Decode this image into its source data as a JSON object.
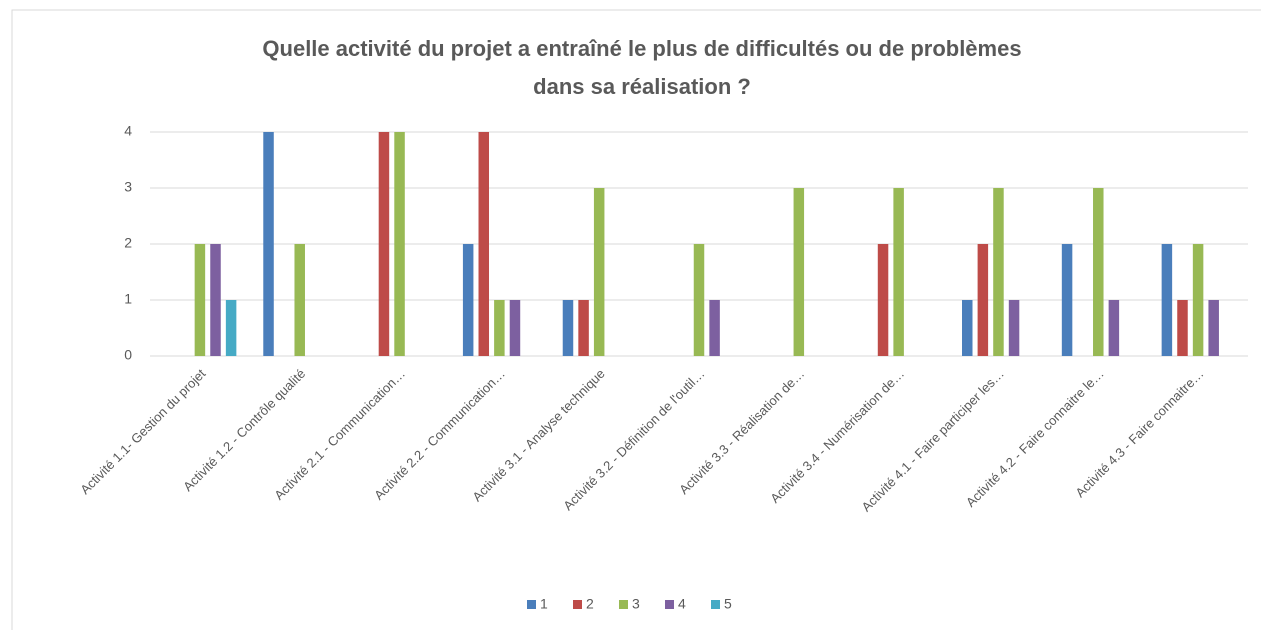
{
  "chart_data": {
    "type": "bar",
    "title": [
      "Quelle activité du projet a entraîné le plus de difficultés ou de problèmes",
      "dans sa réalisation ?"
    ],
    "categories": [
      "Activité 1.1- Gestion du projet",
      "Activité 1.2 - Contrôle qualité",
      "Activité 2.1 - Communication…",
      "Activité 2.2 - Communication…",
      "Activité 3.1 - Analyse technique",
      "Activité 3.2 - Définition de l'outil…",
      "Activité 3.3 - Réalisation de…",
      "Activité 3.4 - Numérisation de…",
      "Activité 4.1 - Faire participer les…",
      "Activité 4.2 - Faire connaitre le…",
      "Activité 4.3 - Faire connaitre…"
    ],
    "series": [
      {
        "name": "1",
        "color": "#4a7ebb",
        "values": [
          0,
          4,
          0,
          2,
          1,
          0,
          0,
          0,
          1,
          2,
          2
        ]
      },
      {
        "name": "2",
        "color": "#be4b48",
        "values": [
          0,
          0,
          4,
          4,
          1,
          0,
          0,
          2,
          2,
          0,
          1
        ]
      },
      {
        "name": "3",
        "color": "#98b954",
        "values": [
          2,
          2,
          4,
          1,
          3,
          2,
          3,
          3,
          3,
          3,
          2
        ]
      },
      {
        "name": "4",
        "color": "#7d60a0",
        "values": [
          2,
          0,
          0,
          1,
          0,
          1,
          0,
          0,
          1,
          1,
          1
        ]
      },
      {
        "name": "5",
        "color": "#46aac5",
        "values": [
          1,
          0,
          0,
          0,
          0,
          0,
          0,
          0,
          0,
          0,
          0
        ]
      }
    ],
    "ylim": [
      0,
      4
    ],
    "yticks": [
      0,
      1,
      2,
      3,
      4
    ],
    "grid": true,
    "legend": "bottom"
  }
}
